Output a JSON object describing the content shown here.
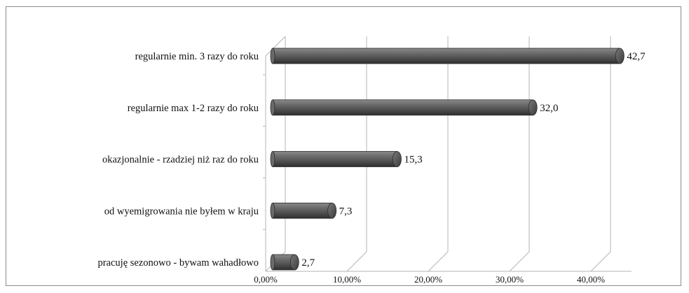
{
  "chart_data": {
    "type": "bar",
    "orientation": "horizontal",
    "style": "3d-cylinder",
    "categories": [
      "regularnie min. 3 razy do roku",
      "regularnie max 1-2 razy do roku",
      "okazjonalnie - rzadziej niż raz do roku",
      "od wyemigrowania nie byłem w kraju",
      "pracuję sezonowo - bywam wahadłowo"
    ],
    "values": [
      42.7,
      32.0,
      15.3,
      7.3,
      2.7
    ],
    "data_labels": [
      "42,7",
      "32,0",
      "15,3",
      "7,3",
      "2,7"
    ],
    "xlim": [
      0,
      45
    ],
    "x_ticks": [
      0,
      10,
      20,
      30,
      40
    ],
    "x_tick_labels": [
      "0,00%",
      "10,00%",
      "20,00%",
      "30,00%",
      "40,00%"
    ],
    "title": "",
    "xlabel": "",
    "ylabel": "",
    "grid": true,
    "legend": "none",
    "bar_color": "#5a5a5a",
    "grid_color": "#b5b5b5"
  }
}
